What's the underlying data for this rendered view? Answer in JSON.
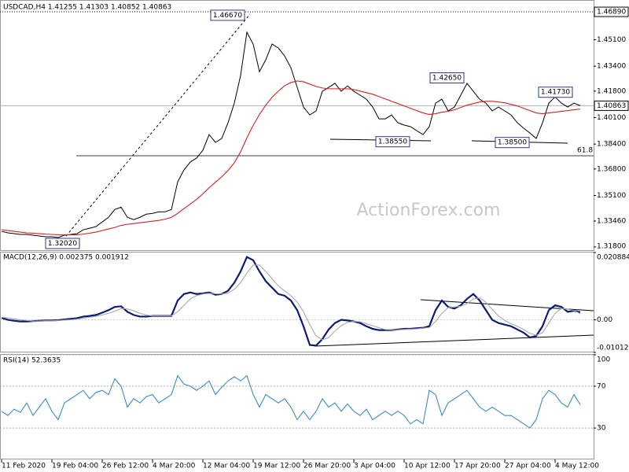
{
  "chart_data": [
    {
      "type": "line",
      "title": "USDCAD,H4  1.41255 1.41303 1.40852 1.40863",
      "watermark": "ActionForex.com",
      "ylim": [
        1.3154,
        1.476
      ],
      "yticks": [
        {
          "value": 1.451,
          "label": "1.45100"
        },
        {
          "value": 1.434,
          "label": "1.43400"
        },
        {
          "value": 1.418,
          "label": "1.41800"
        },
        {
          "value": 1.401,
          "label": "1.40100"
        },
        {
          "value": 1.384,
          "label": "1.38400"
        },
        {
          "value": 1.368,
          "label": "1.36800"
        },
        {
          "value": 1.351,
          "label": "1.35100"
        },
        {
          "value": 1.3346,
          "label": "1.33460"
        },
        {
          "value": 1.318,
          "label": "1.31800"
        }
      ],
      "high_line": {
        "value": 1.4689,
        "label": "1.46890"
      },
      "last_price": {
        "value": 1.40863,
        "label": "1.40863"
      },
      "fib_level": {
        "value": 1.3765,
        "label": "61.8"
      },
      "annotations": [
        {
          "value": 1.4667,
          "label": "1.46670"
        },
        {
          "value": 1.4265,
          "label": "1.42650"
        },
        {
          "value": 1.4173,
          "label": "1.41730"
        },
        {
          "value": 1.3855,
          "label": "1.38550"
        },
        {
          "value": 1.385,
          "label": "1.38500"
        },
        {
          "value": 1.3202,
          "label": "1.32020"
        }
      ],
      "series": [
        {
          "color": "#000000",
          "values": [
            1.328,
            1.327,
            1.3265,
            1.326,
            1.326,
            1.3255,
            1.325,
            1.3245,
            1.3245,
            1.324,
            1.3255,
            1.326,
            1.3265,
            1.329,
            1.33,
            1.331,
            1.334,
            1.337,
            1.342,
            1.3435,
            1.337,
            1.3355,
            1.337,
            1.339,
            1.3395,
            1.3405,
            1.3405,
            1.342,
            1.3598,
            1.3674,
            1.3725,
            1.375,
            1.38,
            1.3901,
            1.3851,
            1.3876,
            1.3977,
            1.4103,
            1.428,
            1.4558,
            1.4482,
            1.4305,
            1.4381,
            1.4482,
            1.4457,
            1.4406,
            1.433,
            1.4204,
            1.4078,
            1.4027,
            1.4053,
            1.4179,
            1.4204,
            1.423,
            1.4179,
            1.4214,
            1.4179,
            1.4154,
            1.4128,
            1.4078,
            1.4002,
            1.4002,
            1.4027,
            1.3977,
            1.3962,
            1.3952,
            1.3926,
            1.3901,
            1.3952,
            1.4103,
            1.4128,
            1.4053,
            1.4078,
            1.4154,
            1.423,
            1.4179,
            1.4128,
            1.4103,
            1.4053,
            1.4078,
            1.4053,
            1.4027,
            1.3977,
            1.3942,
            1.3911,
            1.3876,
            1.3977,
            1.4103,
            1.4143,
            1.4103,
            1.4078,
            1.4103,
            1.40863
          ]
        },
        {
          "color": "#e01e1e",
          "values": [
            1.329,
            1.3285,
            1.328,
            1.3275,
            1.327,
            1.3268,
            1.3265,
            1.3262,
            1.326,
            1.3258,
            1.3257,
            1.3257,
            1.3258,
            1.3262,
            1.3268,
            1.3275,
            1.3285,
            1.3295,
            1.3305,
            1.3318,
            1.3325,
            1.333,
            1.3335,
            1.334,
            1.3345,
            1.335,
            1.3358,
            1.337,
            1.3395,
            1.3425,
            1.3455,
            1.3485,
            1.352,
            1.356,
            1.3595,
            1.363,
            1.367,
            1.372,
            1.379,
            1.388,
            1.396,
            1.403,
            1.409,
            1.414,
            1.418,
            1.4215,
            1.4235,
            1.4245,
            1.424,
            1.4225,
            1.421,
            1.42,
            1.4195,
            1.4195,
            1.4195,
            1.4195,
            1.419,
            1.418,
            1.417,
            1.416,
            1.4145,
            1.413,
            1.4115,
            1.41,
            1.4085,
            1.407,
            1.4055,
            1.404,
            1.403,
            1.4035,
            1.4045,
            1.405,
            1.406,
            1.4075,
            1.409,
            1.41,
            1.411,
            1.4115,
            1.4115,
            1.411,
            1.4105,
            1.4095,
            1.4085,
            1.407,
            1.4055,
            1.404,
            1.4035,
            1.404,
            1.4045,
            1.405,
            1.4055,
            1.406,
            1.4065
          ]
        }
      ]
    },
    {
      "type": "line",
      "title": "MACD(12,26,9) 0.002375 0.001912",
      "ylim": [
        -0.010121,
        0.020884
      ],
      "yticks": [
        0.020884,
        {
          "value": 0,
          "label": "0.00"
        },
        -0.010121
      ],
      "series": [
        {
          "color": "#0c1a78",
          "values": [
            0.0006,
            0,
            -0.0003,
            -0.0005,
            -0.0005,
            -0.0004,
            -0.0003,
            -0.0002,
            -0.0002,
            -0.0001,
            0.0001,
            0.0003,
            0.0005,
            0.001,
            0.0012,
            0.0015,
            0.0022,
            0.003,
            0.004,
            0.0042,
            0.0025,
            0.0015,
            0.001,
            0.001,
            0.0012,
            0.0012,
            0.0012,
            0.0012,
            0.006,
            0.008,
            0.0085,
            0.008,
            0.0082,
            0.0085,
            0.0078,
            0.008,
            0.009,
            0.0115,
            0.015,
            0.0195,
            0.0185,
            0.015,
            0.012,
            0.01,
            0.008,
            0.0075,
            0.006,
            0.003,
            -0.002,
            -0.0078,
            -0.008,
            -0.006,
            -0.003,
            -0.001,
            0,
            -0.0002,
            -0.0005,
            -0.001,
            -0.002,
            -0.0028,
            -0.0032,
            -0.0032,
            -0.0032,
            -0.003,
            -0.0028,
            -0.0028,
            -0.0026,
            -0.0025,
            -0.002,
            0.003,
            0.006,
            0.004,
            0.0035,
            0.0045,
            0.0065,
            0.008,
            0.006,
            0.003,
            0,
            -0.001,
            -0.0015,
            -0.002,
            -0.003,
            -0.004,
            -0.0055,
            -0.005,
            -0.002,
            0.003,
            0.0045,
            0.004,
            0.0025,
            0.0028,
            0.002375
          ]
        },
        {
          "color": "#a8a8a8",
          "values": [
            0.0008,
            0.0006,
            0.0003,
            0,
            -0.0002,
            -0.0004,
            -0.0004,
            -0.0003,
            -0.0003,
            -0.0002,
            -0.0001,
            0,
            0.0002,
            0.0005,
            0.0008,
            0.0011,
            0.0015,
            0.002,
            0.0027,
            0.0035,
            0.0034,
            0.0028,
            0.002,
            0.0015,
            0.0012,
            0.0012,
            0.0012,
            0.0012,
            0.0025,
            0.0045,
            0.0065,
            0.0075,
            0.008,
            0.0082,
            0.0081,
            0.008,
            0.0083,
            0.0095,
            0.0115,
            0.0145,
            0.017,
            0.017,
            0.015,
            0.0128,
            0.0105,
            0.009,
            0.0075,
            0.0055,
            0.0025,
            -0.0015,
            -0.005,
            -0.0062,
            -0.0055,
            -0.0035,
            -0.0018,
            -0.0008,
            -0.0005,
            -0.0006,
            -0.0012,
            -0.0018,
            -0.0025,
            -0.003,
            -0.0031,
            -0.0031,
            -0.003,
            -0.0029,
            -0.0028,
            -0.0026,
            -0.0024,
            -0.0005,
            0.002,
            0.0038,
            0.004,
            0.0042,
            0.005,
            0.0065,
            0.0068,
            0.0055,
            0.0032,
            0.0012,
            -0.0002,
            -0.0012,
            -0.002,
            -0.003,
            -0.0042,
            -0.0048,
            -0.004,
            -0.001,
            0.002,
            0.0035,
            0.0033,
            0.0029,
            0.001912
          ]
        }
      ]
    },
    {
      "type": "line",
      "title": "RSI(14) 52.3635",
      "ylim": [
        0,
        100
      ],
      "yticks": [
        100,
        70,
        30
      ],
      "categories": [
        "11 Feb 2020",
        null,
        null,
        null,
        null,
        null,
        null,
        null,
        "19 Feb 04:00",
        null,
        null,
        null,
        null,
        null,
        null,
        null,
        "26 Feb 12:00",
        null,
        null,
        null,
        null,
        null,
        null,
        null,
        "4 Mar 20:00",
        null,
        null,
        null,
        null,
        null,
        null,
        null,
        "12 Mar 04:00",
        null,
        null,
        null,
        null,
        null,
        null,
        null,
        "19 Mar 12:00",
        null,
        null,
        null,
        null,
        null,
        null,
        null,
        "26 Mar 20:00",
        null,
        null,
        null,
        null,
        null,
        null,
        null,
        "3 Apr 04:00",
        null,
        null,
        null,
        null,
        null,
        null,
        null,
        "10 Apr 12:00",
        null,
        null,
        null,
        null,
        null,
        null,
        null,
        "17 Apr 20:00",
        null,
        null,
        null,
        null,
        null,
        null,
        null,
        "27 Apr 04:00",
        null,
        null,
        null,
        null,
        null,
        null,
        null,
        "4 May 12:00",
        null,
        null,
        null,
        null
      ],
      "series": [
        {
          "color": "#3a8cc6",
          "values": [
            46,
            42,
            48,
            45,
            54,
            42,
            50,
            58,
            46,
            38,
            54,
            58,
            62,
            66,
            58,
            64,
            66,
            62,
            77,
            70,
            50,
            58,
            54,
            60,
            62,
            54,
            58,
            62,
            80,
            72,
            70,
            66,
            70,
            75,
            62,
            69,
            75,
            79,
            75,
            80,
            62,
            50,
            62,
            58,
            54,
            58,
            50,
            38,
            46,
            38,
            46,
            58,
            50,
            54,
            46,
            53,
            46,
            42,
            48,
            38,
            42,
            46,
            42,
            46,
            42,
            34,
            38,
            34,
            66,
            62,
            42,
            54,
            58,
            62,
            66,
            58,
            50,
            46,
            50,
            46,
            42,
            42,
            38,
            34,
            30,
            38,
            58,
            66,
            62,
            54,
            50,
            62,
            52.3635
          ]
        }
      ]
    }
  ]
}
